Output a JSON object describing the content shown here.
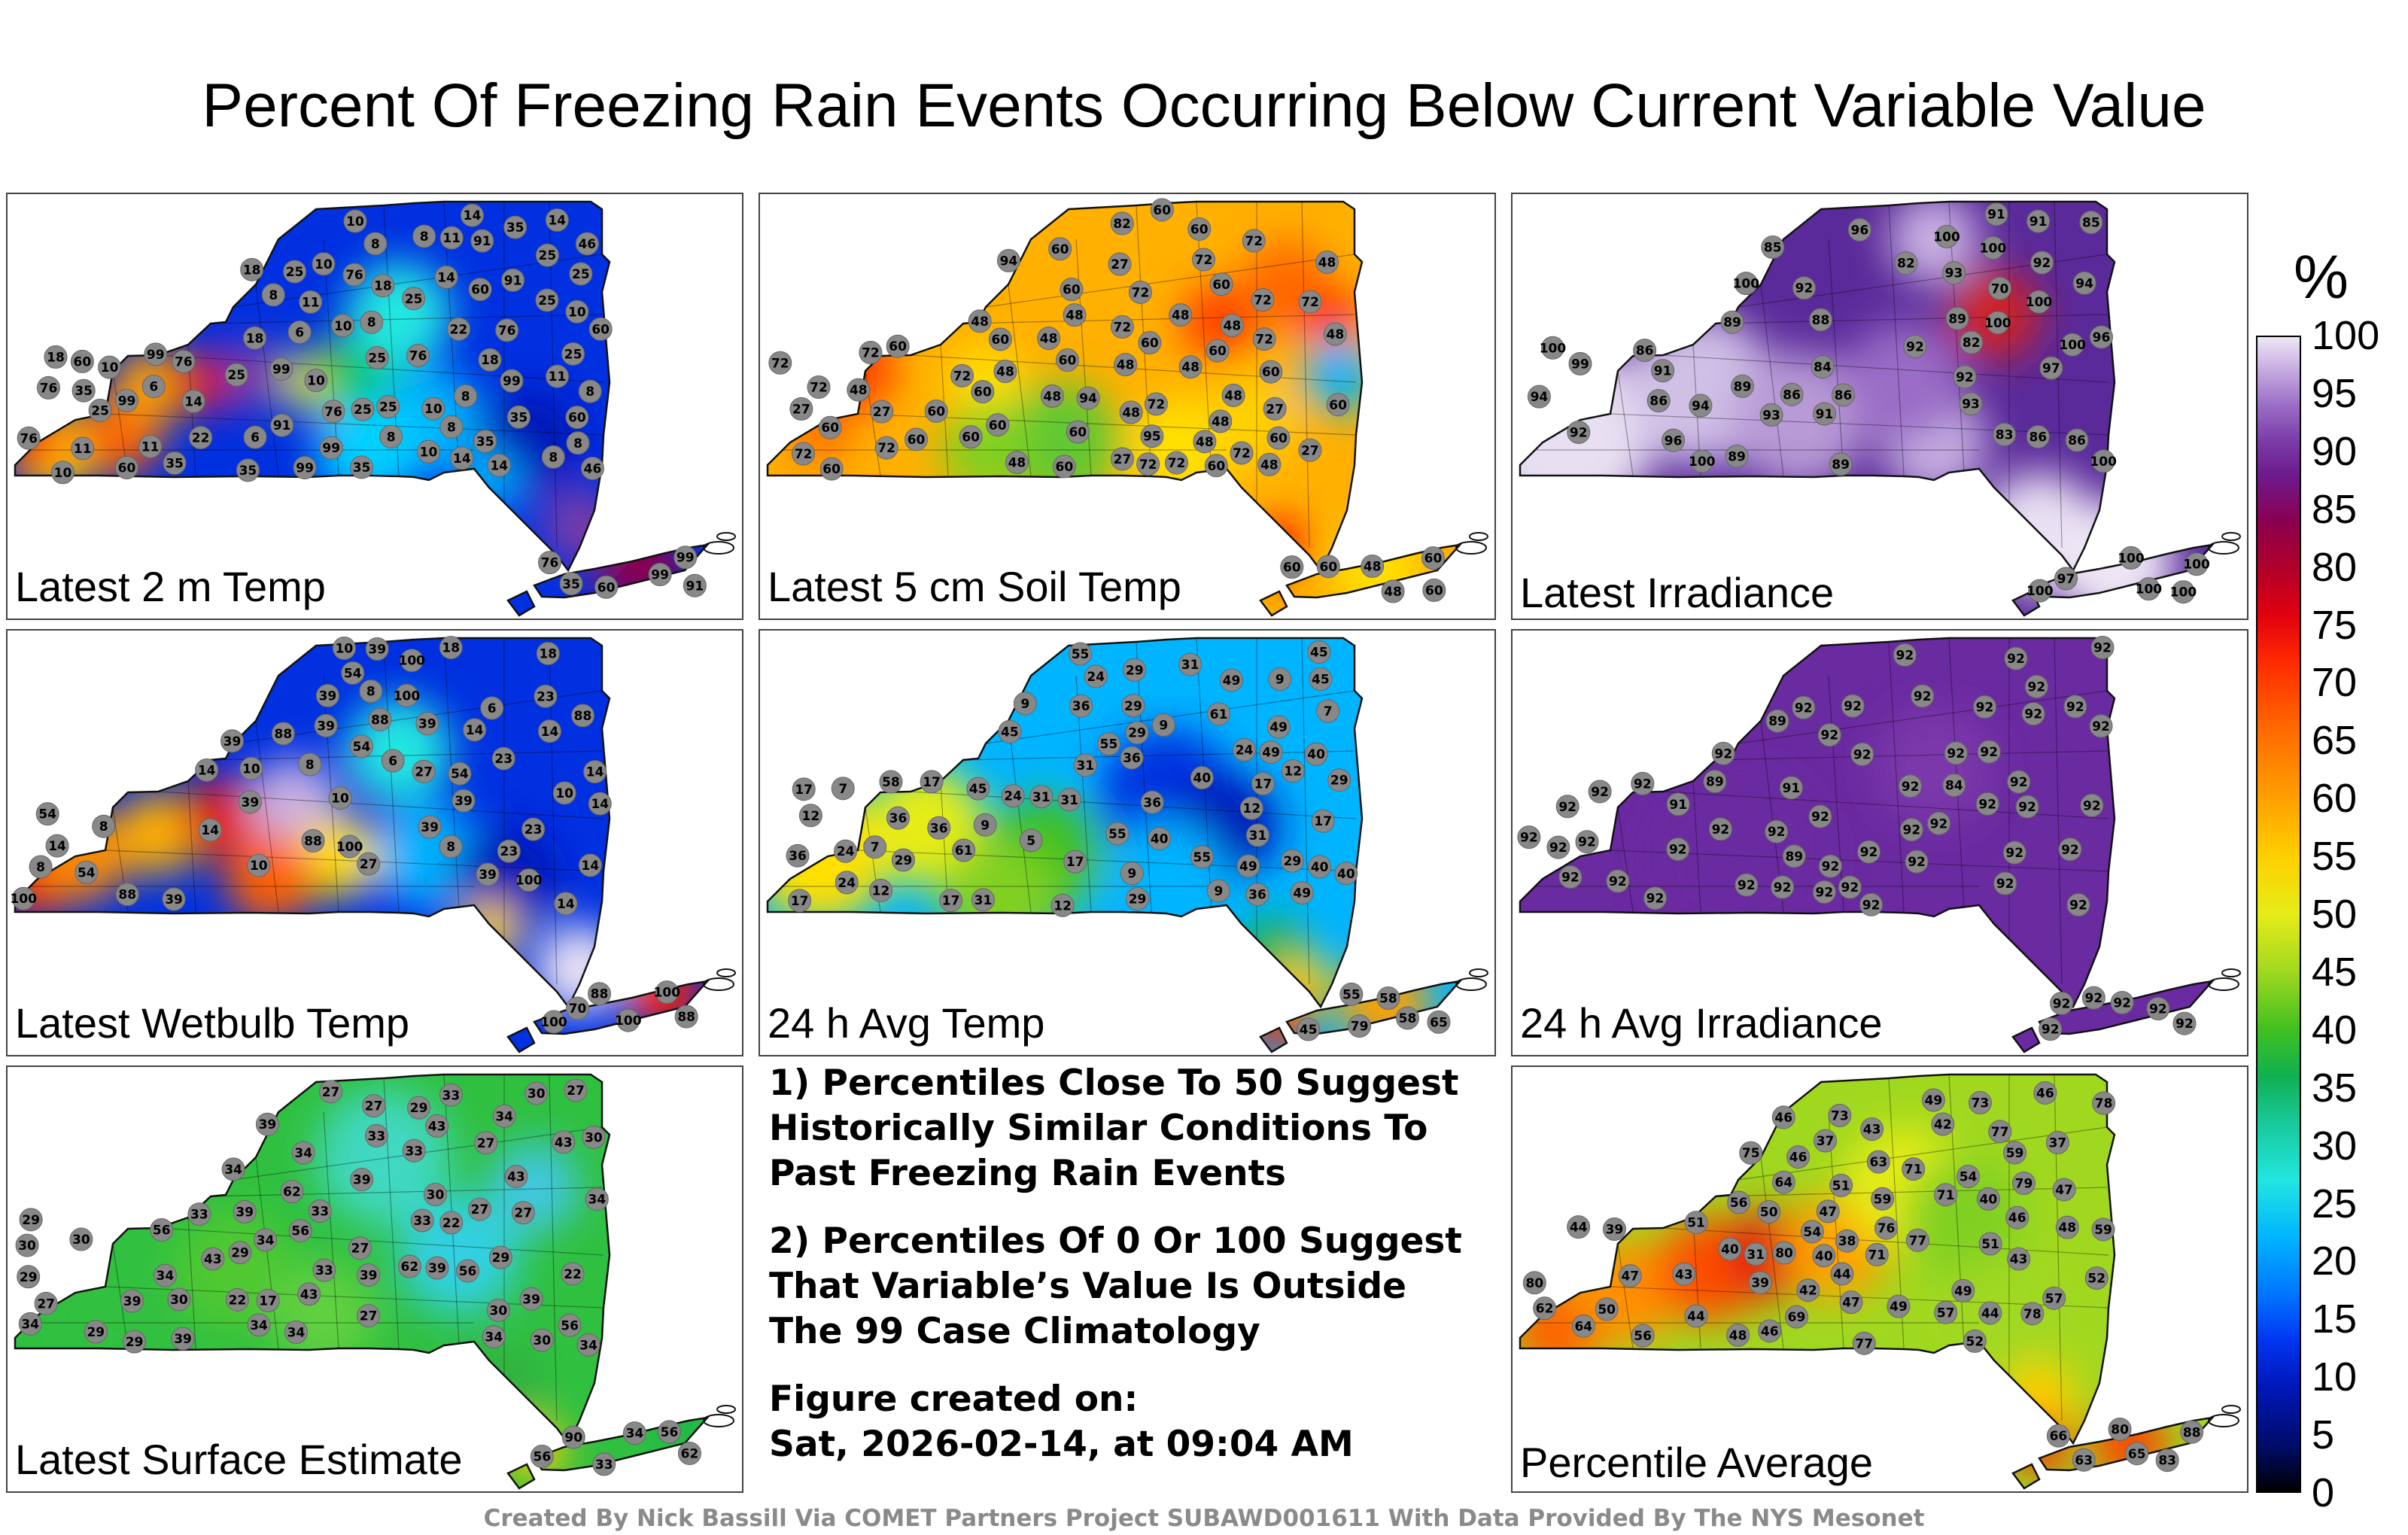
{
  "title": "Percent Of Freezing Rain Events Occurring Below Current Variable Value",
  "panels": [
    {
      "label": "Latest 2 m Temp",
      "scheme": "temp2m",
      "stations": [
        25,
        25,
        18,
        18,
        11,
        11,
        10,
        10,
        60,
        25,
        25,
        35,
        18,
        8,
        11,
        8,
        10,
        91,
        46,
        60,
        99,
        91,
        99,
        11,
        10,
        8,
        6,
        8,
        6,
        25,
        35,
        76,
        91,
        35,
        11,
        8,
        10,
        8,
        10,
        25,
        99,
        76,
        35,
        76,
        99,
        22,
        8,
        6,
        10,
        8,
        8,
        10,
        76,
        25,
        35,
        25,
        99,
        35,
        22,
        14,
        18,
        25,
        8,
        14,
        25,
        76,
        99,
        76,
        76,
        25,
        10,
        14,
        14,
        14,
        18,
        60,
        46,
        14,
        60,
        35,
        60,
        35,
        99,
        99,
        60,
        91,
        76
      ]
    },
    {
      "label": "Latest 5 cm Soil Temp",
      "scheme": "soil",
      "stations": [
        60,
        60,
        60,
        60,
        27,
        72,
        72,
        48,
        72,
        95,
        60,
        72,
        94,
        48,
        82,
        60,
        72,
        72,
        72,
        48,
        72,
        48,
        60,
        72,
        48,
        60,
        27,
        48,
        72,
        72,
        60,
        27,
        48,
        60,
        72,
        60,
        60,
        48,
        48,
        27,
        72,
        48,
        60,
        48,
        60,
        27,
        27,
        60,
        48,
        72,
        60,
        60,
        72,
        48,
        48,
        60,
        72,
        48,
        60,
        60,
        60,
        72,
        48,
        60,
        94,
        60,
        48,
        48,
        48,
        60,
        60,
        60,
        60,
        48
      ]
    },
    {
      "label": "Latest Irradiance",
      "scheme": "irr",
      "stations": [
        89,
        96,
        85,
        85,
        92,
        93,
        86,
        86,
        94,
        93,
        70,
        88,
        83,
        96,
        100,
        82,
        82,
        100,
        100,
        89,
        100,
        92,
        92,
        86,
        86,
        94,
        89,
        91,
        92,
        94,
        97,
        96,
        89,
        84,
        89,
        92,
        91,
        86,
        100,
        86,
        91,
        93,
        99,
        100,
        91,
        100,
        100,
        100,
        97,
        100,
        100,
        100,
        100,
        100
      ]
    },
    {
      "label": "Latest Wetbulb Temp",
      "scheme": "wet",
      "stations": [
        27,
        18,
        14,
        10,
        39,
        14,
        8,
        54,
        10,
        39,
        14,
        6,
        8,
        100,
        39,
        54,
        8,
        10,
        88,
        100,
        39,
        88,
        100,
        14,
        8,
        6,
        8,
        10,
        54,
        100,
        39,
        23,
        39,
        27,
        14,
        18,
        88,
        39,
        88,
        23,
        100,
        88,
        23,
        39,
        23,
        14,
        10,
        14,
        14,
        14,
        54,
        39,
        54,
        39,
        100,
        100,
        70,
        88,
        88,
        100
      ]
    },
    {
      "label": "24 h Avg Temp",
      "scheme": "avg24",
      "stations": [
        31,
        31,
        29,
        12,
        36,
        36,
        31,
        29,
        17,
        9,
        24,
        9,
        24,
        17,
        9,
        7,
        7,
        12,
        61,
        55,
        58,
        49,
        45,
        40,
        17,
        9,
        5,
        9,
        31,
        49,
        40,
        45,
        55,
        36,
        29,
        17,
        9,
        17,
        7,
        24,
        12,
        61,
        49,
        40,
        36,
        45,
        24,
        12,
        36,
        17,
        29,
        12,
        29,
        49,
        55,
        31,
        45,
        40,
        24,
        17,
        36,
        29,
        31,
        36,
        55,
        40,
        29,
        49,
        45,
        58,
        79,
        65,
        58,
        55
      ]
    },
    {
      "label": "24 h Avg Irradiance",
      "scheme": "irr24",
      "stations": [
        92,
        92,
        92,
        92,
        92,
        92,
        92,
        92,
        92,
        92,
        89,
        91,
        92,
        84,
        92,
        92,
        92,
        89,
        89,
        92,
        92,
        92,
        92,
        92,
        92,
        92,
        92,
        92,
        92,
        92,
        92,
        92,
        92,
        92,
        92,
        92,
        92,
        92,
        92,
        91,
        92,
        92,
        92,
        92,
        92,
        92,
        92,
        92,
        92,
        92,
        92,
        92,
        92,
        92,
        92,
        92,
        92,
        92,
        92,
        92
      ]
    },
    {
      "label": "Latest Surface Estimate",
      "scheme": "surf",
      "stations": [
        33,
        29,
        27,
        33,
        27,
        30,
        27,
        39,
        34,
        34,
        22,
        27,
        27,
        17,
        39,
        30,
        27,
        27,
        22,
        34,
        39,
        29,
        29,
        27,
        34,
        39,
        62,
        43,
        56,
        33,
        29,
        30,
        22,
        39,
        56,
        34,
        39,
        43,
        43,
        29,
        30,
        27,
        62,
        34,
        39,
        39,
        30,
        33,
        34,
        56,
        29,
        30,
        29,
        30,
        33,
        34,
        43,
        30,
        34,
        33,
        34,
        43,
        34,
        56,
        33,
        34,
        62,
        56,
        33,
        90,
        56
      ]
    },
    {
      "label": "Percentile Average",
      "scheme": "avg",
      "stations": [
        51,
        49,
        47,
        47,
        54,
        37,
        56,
        43,
        44,
        40,
        62,
        43,
        51,
        38,
        44,
        46,
        51,
        48,
        42,
        80,
        40,
        78,
        46,
        42,
        63,
        64,
        78,
        46,
        39,
        37,
        59,
        77,
        79,
        76,
        54,
        31,
        43,
        46,
        46,
        80,
        75,
        73,
        77,
        50,
        52,
        39,
        57,
        56,
        71,
        44,
        49,
        59,
        50,
        47,
        40,
        77,
        64,
        71,
        73,
        49,
        44,
        48,
        71,
        59,
        47,
        52,
        57,
        69,
        65,
        63,
        88,
        83,
        80,
        66
      ]
    }
  ],
  "notes": {
    "line1": "1) Percentiles Close To 50 Suggest",
    "line2": "Historically Similar Conditions To",
    "line3": "Past Freezing Rain Events",
    "line4": "2) Percentiles Of 0 Or 100 Suggest",
    "line5": "That Variable’s Value Is Outside",
    "line6": "The 99 Case Climatology",
    "line7": "Figure created on:",
    "line8": "Sat, 2026-02-14, at 09:04 AM"
  },
  "colorbar": {
    "unit": "%",
    "ticks": [
      "100",
      "95",
      "90",
      "85",
      "80",
      "75",
      "70",
      "65",
      "60",
      "55",
      "50",
      "45",
      "40",
      "35",
      "30",
      "25",
      "20",
      "15",
      "10",
      "5",
      "0"
    ]
  },
  "credit": "Created By Nick Bassill Via COMET Partners Project SUBAWD001611 With Data Provided By The NYS Mesonet"
}
